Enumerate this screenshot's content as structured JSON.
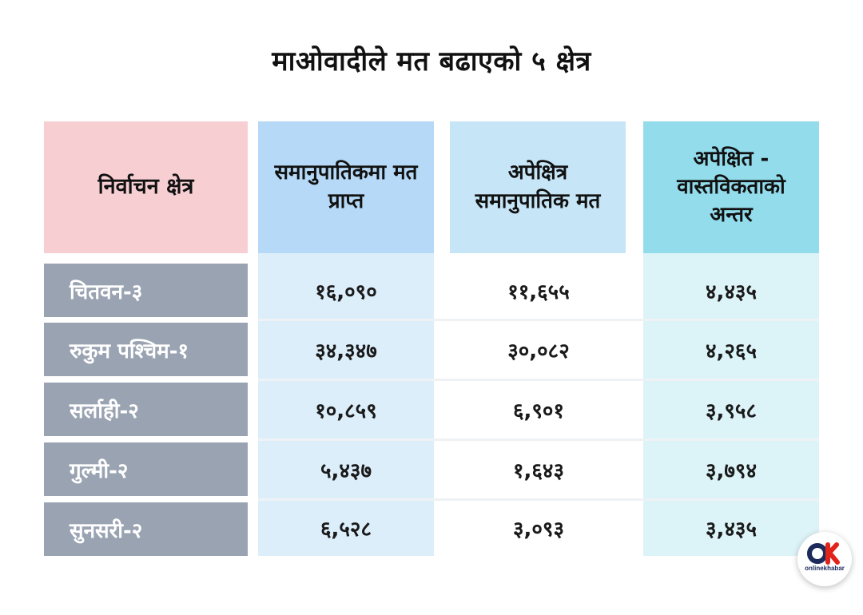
{
  "title": "माओवादीले मत बढाएको ५ क्षेत्र",
  "chart_data": {
    "type": "table",
    "title": "माओवादीले मत बढाएको ५ क्षेत्र",
    "columns": [
      "निर्वाचन क्षेत्र",
      "समानुपातिकमा मत प्राप्त",
      "अपेक्षित्र समानुपातिक मत",
      "अपेक्षित - वास्तविकताको अन्तर"
    ],
    "rows": [
      [
        "चितवन-३",
        "१६,०९०",
        "११,६५५",
        "४,४३५"
      ],
      [
        "रुकुम पश्चिम-१",
        "३४,३४७",
        "३०,०८२",
        "४,२६५"
      ],
      [
        "सर्लाही-२",
        "१०,८५९",
        "६,९०१",
        "३,९५८"
      ],
      [
        "गुल्मी-२",
        "५,४३७",
        "१,६४३",
        "३,७९४"
      ],
      [
        "सुनसरी-२",
        "६,५२८",
        "३,०९३",
        "३,४३५"
      ]
    ]
  },
  "logo": {
    "text": "onlinekhabar"
  }
}
